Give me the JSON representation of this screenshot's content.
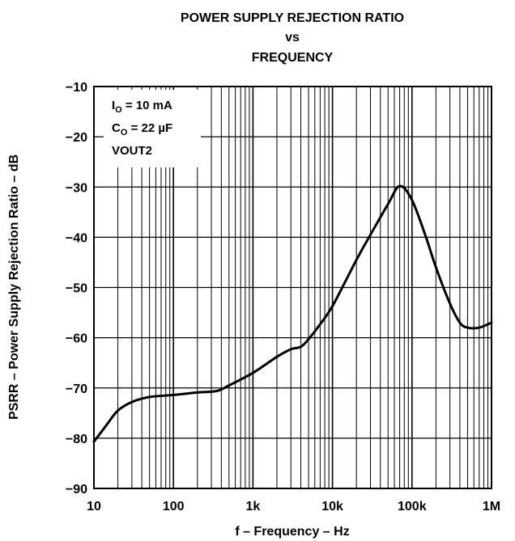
{
  "chart_data": {
    "type": "line",
    "title_lines": [
      "POWER SUPPLY REJECTION RATIO",
      "vs",
      "FREQUENCY"
    ],
    "xlabel": "f – Frequency – Hz",
    "ylabel": "PSRR – Power Supply Rejection Ratio – dB",
    "x_scale": "log",
    "xlim": [
      10,
      1000000
    ],
    "ylim": [
      -90,
      -10
    ],
    "grid": true,
    "x_ticks": [
      {
        "value": 10,
        "label": "10"
      },
      {
        "value": 100,
        "label": "100"
      },
      {
        "value": 1000,
        "label": "1k"
      },
      {
        "value": 10000,
        "label": "10k"
      },
      {
        "value": 100000,
        "label": "100k"
      },
      {
        "value": 1000000,
        "label": "1M"
      }
    ],
    "y_ticks": [
      {
        "value": -10,
        "label": "−10"
      },
      {
        "value": -20,
        "label": "−20"
      },
      {
        "value": -30,
        "label": "−30"
      },
      {
        "value": -40,
        "label": "−40"
      },
      {
        "value": -50,
        "label": "−50"
      },
      {
        "value": -60,
        "label": "−60"
      },
      {
        "value": -70,
        "label": "−70"
      },
      {
        "value": -80,
        "label": "−80"
      },
      {
        "value": -90,
        "label": "−90"
      }
    ],
    "conditions": {
      "io": {
        "main": "I",
        "sub": "O",
        "rest": " = 10 mA"
      },
      "co": {
        "main": "C",
        "sub": "O",
        "rest": " = 22 µF"
      },
      "vout": "VOUT2"
    },
    "series": [
      {
        "color": "#000000",
        "points": [
          [
            10,
            -80.7
          ],
          [
            15,
            -77.0
          ],
          [
            20,
            -74.5
          ],
          [
            30,
            -72.8
          ],
          [
            50,
            -71.8
          ],
          [
            100,
            -71.4
          ],
          [
            200,
            -70.9
          ],
          [
            350,
            -70.6
          ],
          [
            500,
            -69.5
          ],
          [
            1000,
            -67.0
          ],
          [
            2000,
            -63.8
          ],
          [
            3000,
            -62.3
          ],
          [
            4000,
            -61.8
          ],
          [
            5000,
            -60.3
          ],
          [
            7000,
            -57.3
          ],
          [
            10000,
            -53.7
          ],
          [
            20000,
            -44.5
          ],
          [
            30000,
            -39.5
          ],
          [
            50000,
            -33.4
          ],
          [
            70000,
            -29.8
          ],
          [
            100000,
            -32.6
          ],
          [
            150000,
            -40.0
          ],
          [
            200000,
            -46.0
          ],
          [
            300000,
            -53.2
          ],
          [
            400000,
            -57.0
          ],
          [
            500000,
            -58.0
          ],
          [
            700000,
            -58.0
          ],
          [
            1000000,
            -57.0
          ]
        ]
      }
    ]
  }
}
